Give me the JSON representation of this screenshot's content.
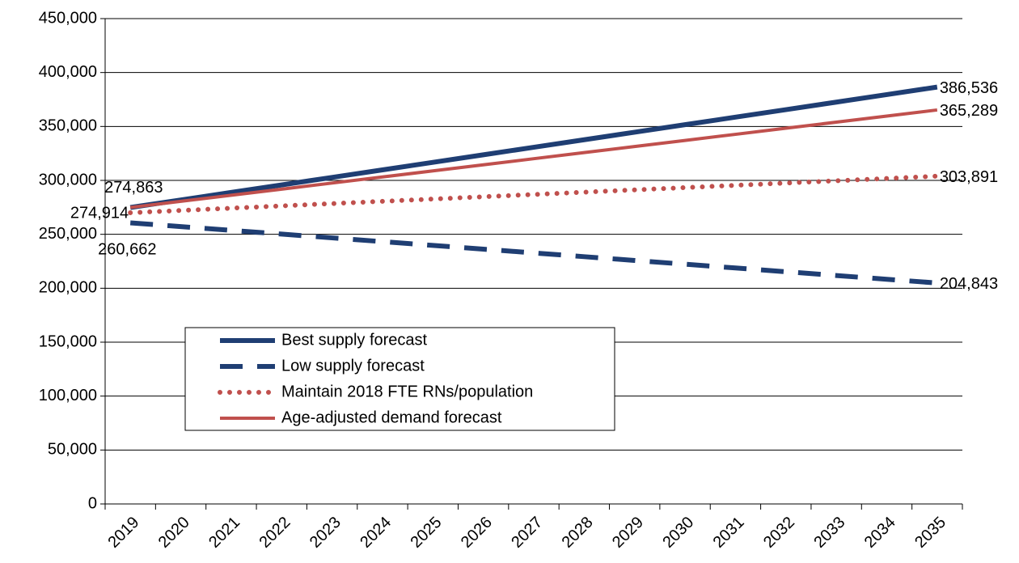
{
  "chart_data": {
    "type": "line",
    "categories": [
      "2019",
      "2020",
      "2021",
      "2022",
      "2023",
      "2024",
      "2025",
      "2026",
      "2027",
      "2028",
      "2029",
      "2030",
      "2031",
      "2032",
      "2033",
      "2034",
      "2035"
    ],
    "ylim": [
      0,
      450000
    ],
    "yticks": [
      0,
      {
        "value": 50000,
        "label": "50,000"
      },
      {
        "value": 100000,
        "label": "100,000"
      },
      {
        "value": 150000,
        "label": "150,000"
      },
      {
        "value": 200000,
        "label": "200,000"
      },
      {
        "value": 250000,
        "label": "250,000"
      },
      {
        "value": 300000,
        "label": "300,000"
      },
      {
        "value": 350000,
        "label": "350,000"
      },
      {
        "value": 400000,
        "label": "400,000"
      },
      {
        "value": 450000,
        "label": "450,000"
      }
    ],
    "grid": true,
    "legend": "lower-left",
    "series": [
      {
        "name": "Best supply forecast",
        "color": "#1f3e73",
        "style": "solid",
        "values": [
          274863,
          281843,
          288822,
          295802,
          302781,
          309761,
          316740,
          323720,
          330700,
          337679,
          344659,
          351638,
          358618,
          365597,
          372577,
          379556,
          386536
        ],
        "value_labels": [
          "274,863",
          null,
          null,
          null,
          null,
          null,
          null,
          null,
          null,
          null,
          null,
          null,
          null,
          null,
          null,
          null,
          "386,536"
        ]
      },
      {
        "name": "Low supply forecast",
        "color": "#1f3e73",
        "style": "dashed",
        "values": [
          260662,
          257173,
          253685,
          250196,
          246707,
          243219,
          239730,
          236241,
          232753,
          229264,
          225775,
          222287,
          218798,
          215309,
          211820,
          208332,
          204843
        ],
        "value_labels": [
          "260,662",
          null,
          null,
          null,
          null,
          null,
          null,
          null,
          null,
          null,
          null,
          null,
          null,
          null,
          null,
          null,
          "204,843"
        ]
      },
      {
        "name": "Maintain 2018 FTE RNs/population",
        "color": "#c0504d",
        "style": "dotted",
        "values": [
          270000,
          272118,
          274236,
          276354,
          278473,
          280591,
          282709,
          284827,
          286946,
          289064,
          291182,
          293300,
          295418,
          297537,
          299655,
          301773,
          303891
        ],
        "value_labels": [
          null,
          null,
          null,
          null,
          null,
          null,
          null,
          null,
          null,
          null,
          null,
          null,
          null,
          null,
          null,
          null,
          "303,891"
        ]
      },
      {
        "name": "Age-adjusted demand forecast",
        "color": "#c0504d",
        "style": "solid",
        "values": [
          274914,
          280562,
          286211,
          291859,
          297508,
          303156,
          308804,
          314453,
          320101,
          325750,
          331398,
          337046,
          342695,
          348343,
          353992,
          359640,
          365289
        ],
        "value_labels": [
          "274,914",
          null,
          null,
          null,
          null,
          null,
          null,
          null,
          null,
          null,
          null,
          null,
          null,
          null,
          null,
          null,
          "365,289"
        ]
      }
    ]
  }
}
